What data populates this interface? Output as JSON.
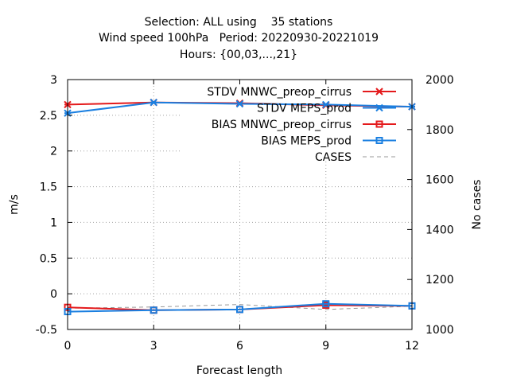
{
  "chart_data": {
    "type": "line",
    "title": [
      "Selection: ALL using    35 stations",
      "Wind speed 100hPa   Period: 20220930-20221019",
      "Hours: {00,03,...,21}"
    ],
    "xlabel": "Forecast length",
    "ylabel": "m/s",
    "y2label": "No cases",
    "x_ticks": [
      "0",
      "3",
      "6",
      "9",
      "12"
    ],
    "y_ticks": [
      "-0.5",
      "0",
      "0.5",
      "1",
      "1.5",
      "2",
      "2.5",
      "3"
    ],
    "y2_ticks": [
      "1000",
      "1200",
      "1400",
      "1600",
      "1800",
      "2000"
    ],
    "xlim": [
      0,
      12
    ],
    "ylim": [
      -0.5,
      3
    ],
    "y2lim": [
      1000,
      2000
    ],
    "grid": true,
    "legend_position": "top-right",
    "x": [
      0,
      3,
      6,
      9,
      12
    ],
    "series": [
      {
        "name": "STDV MNWC_preop_cirrus",
        "axis": "y1",
        "color": "#e41a1c",
        "marker": "x-star",
        "values": [
          2.65,
          2.68,
          2.67,
          2.64,
          2.62
        ]
      },
      {
        "name": "STDV MEPS_prod",
        "axis": "y1",
        "color": "#1a7fe0",
        "marker": "x-star",
        "values": [
          2.53,
          2.68,
          2.66,
          2.65,
          2.62
        ]
      },
      {
        "name": "BIAS MNWC_preop_cirrus",
        "axis": "y1",
        "color": "#e41a1c",
        "marker": "square",
        "values": [
          -0.19,
          -0.23,
          -0.22,
          -0.16,
          -0.17
        ]
      },
      {
        "name": "BIAS MEPS_prod",
        "axis": "y1",
        "color": "#1a7fe0",
        "marker": "square",
        "values": [
          -0.25,
          -0.23,
          -0.22,
          -0.14,
          -0.17
        ]
      },
      {
        "name": "CASES",
        "axis": "y2",
        "color": "#999999",
        "marker": "none",
        "dashed": true,
        "values": [
          1085,
          1090,
          1100,
          1080,
          1093
        ]
      }
    ]
  }
}
